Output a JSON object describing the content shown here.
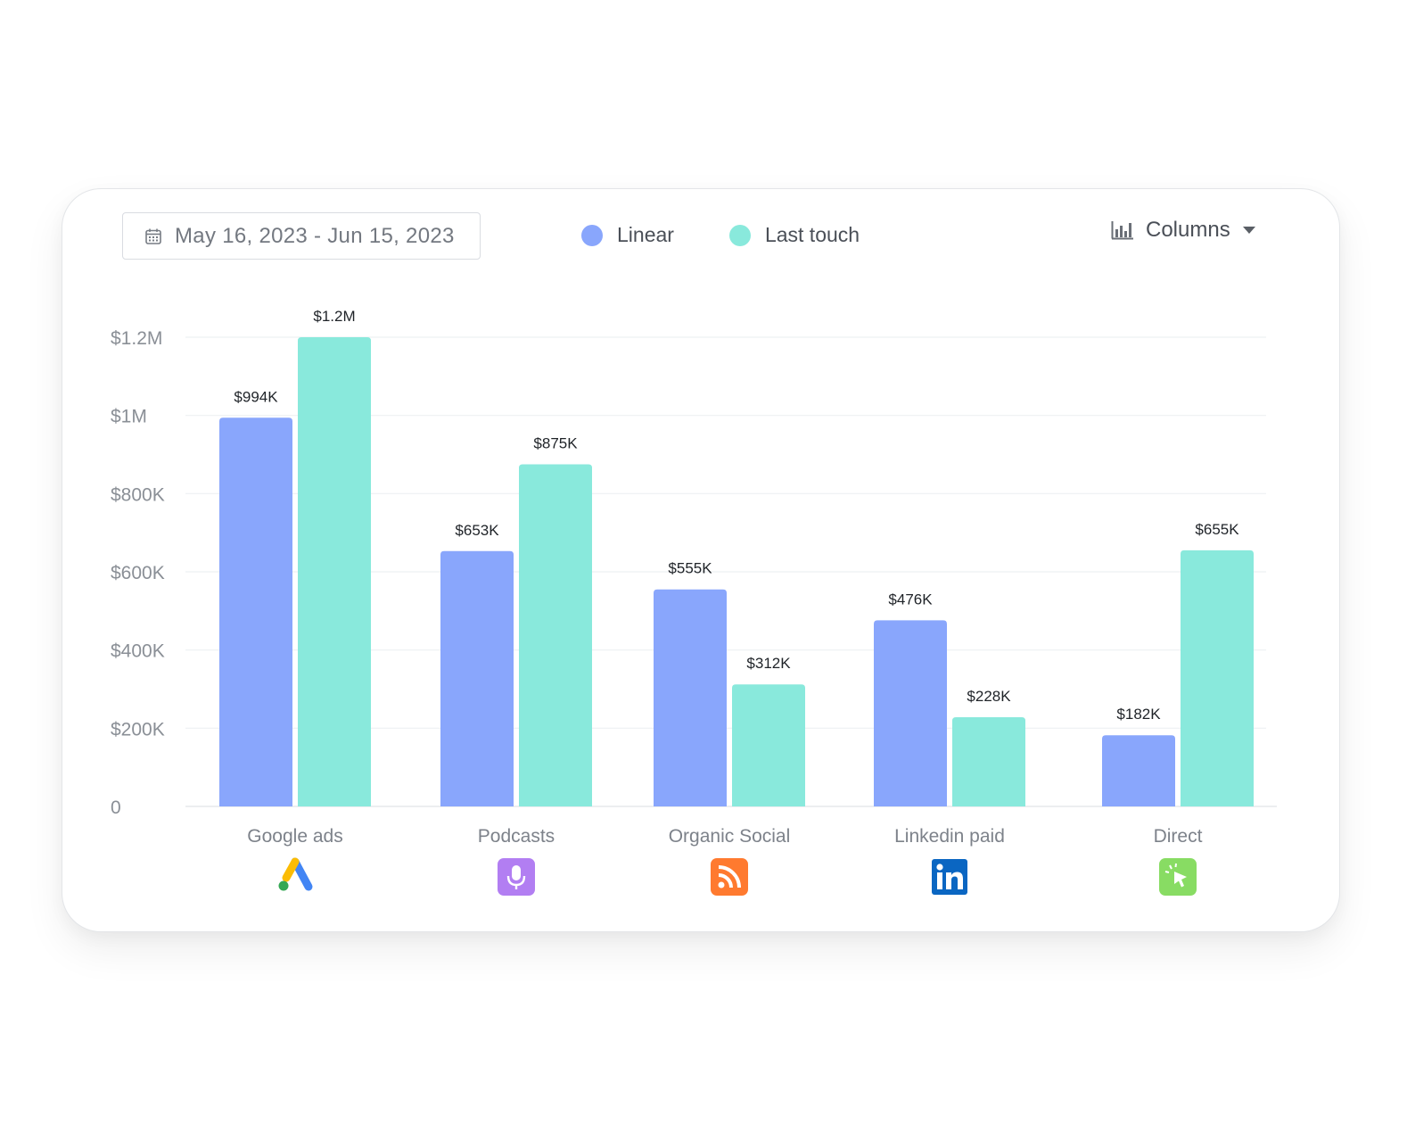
{
  "header": {
    "date_range": "May 16, 2023 - Jun 15, 2023",
    "view_label": "Columns"
  },
  "legend": [
    {
      "name": "Linear",
      "color": "#89a6fc"
    },
    {
      "name": "Last touch",
      "color": "#89e9dc"
    }
  ],
  "icons": {
    "date_picker": "calendar-icon",
    "view_select": "bar-chart-icon",
    "view_dropdown": "chevron-down-icon",
    "categories": [
      "google-ads-icon",
      "podcast-mic-icon",
      "rss-feed-icon",
      "linkedin-icon",
      "cursor-click-icon"
    ]
  },
  "chart_data": {
    "type": "bar",
    "categories": [
      "Google ads",
      "Podcasts",
      "Organic Social",
      "Linkedin paid",
      "Direct"
    ],
    "series": [
      {
        "name": "Linear",
        "color": "#89a6fc",
        "values": [
          994000,
          653000,
          555000,
          476000,
          182000
        ],
        "labels": [
          "$994K",
          "$653K",
          "$555K",
          "$476K",
          "$182K"
        ]
      },
      {
        "name": "Last touch",
        "color": "#89e9dc",
        "values": [
          1200000,
          875000,
          312000,
          228000,
          655000
        ],
        "labels": [
          "$1.2M",
          "$875K",
          "$312K",
          "$228K",
          "$655K"
        ]
      }
    ],
    "yticks": [
      0,
      200000,
      400000,
      600000,
      800000,
      1000000,
      1200000
    ],
    "ytick_labels": [
      "0",
      "$200K",
      "$400K",
      "$600K",
      "$800K",
      "$1M",
      "$1.2M"
    ],
    "ylim": [
      0,
      1200000
    ],
    "grid": true,
    "legend_position": "top-center"
  }
}
